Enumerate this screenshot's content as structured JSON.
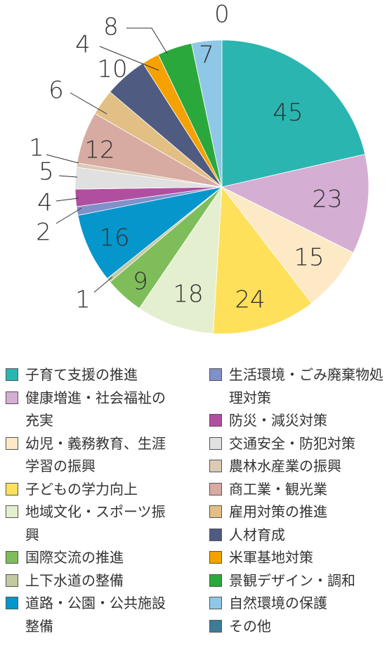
{
  "chart_data": {
    "type": "pie",
    "categories": [
      "子育て支援の推進",
      "健康増進・社会福祉の充実",
      "幼児・義務教育、生涯学習の振興",
      "子どもの学力向上",
      "地域文化・スポーツ振興",
      "国際交流の推進",
      "上下水道の整備",
      "道路・公園・公共施設整備",
      "生活環境・ごみ廃棄物処理対策",
      "防災・減災対策",
      "交通安全・防犯対策",
      "農林水産業の振興",
      "商工業・観光業",
      "雇用対策の推進",
      "人材育成",
      "米軍基地対策",
      "景観デザイン・調和",
      "自然環境の保護",
      "その他"
    ],
    "values": [
      45,
      23,
      15,
      24,
      18,
      9,
      1,
      16,
      2,
      4,
      5,
      1,
      12,
      6,
      10,
      4,
      8,
      7,
      0
    ],
    "colors": [
      "#2bb5b0",
      "#d4aed3",
      "#fde9c6",
      "#ffe05a",
      "#e4efcf",
      "#7fbd5b",
      "#c3c9a0",
      "#0596cc",
      "#8090c9",
      "#b04fa0",
      "#e0e0e0",
      "#dccab4",
      "#d7aaa2",
      "#e2bf85",
      "#4f5b80",
      "#f5a100",
      "#2ba83b",
      "#8fc8e6",
      "#3d7c99"
    ],
    "legend": "bottom"
  }
}
